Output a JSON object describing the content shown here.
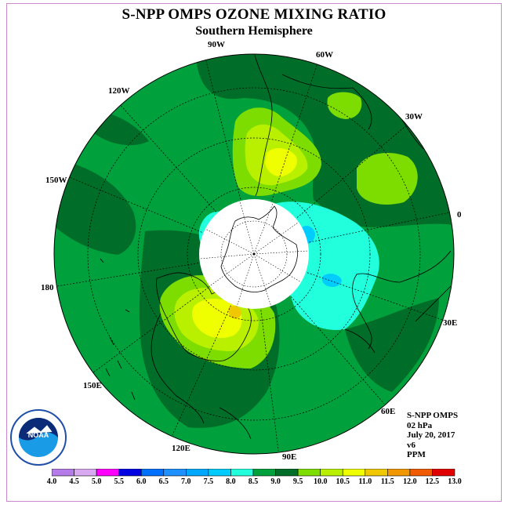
{
  "title": "S-NPP OMPS OZONE MIXING RATIO",
  "subtitle": "Southern Hemisphere",
  "longitude_labels": {
    "lon_90W": "90W",
    "lon_60W": "60W",
    "lon_30W": "30W",
    "lon_0": "0",
    "lon_30E": "30E",
    "lon_60E": "60E",
    "lon_90E": "90E",
    "lon_120E": "120E",
    "lon_150E": "150E",
    "lon_180": "180",
    "lon_150W": "150W",
    "lon_120W": "120W"
  },
  "info": {
    "instrument": "S-NPP OMPS",
    "level": "02 hPa",
    "date": "July 20, 2017",
    "version": "v6",
    "units": "PPM"
  },
  "logo_text": "NOAA",
  "colorbar": {
    "ticks": [
      "4.0",
      "4.5",
      "5.0",
      "5.5",
      "6.0",
      "6.5",
      "7.0",
      "7.5",
      "8.0",
      "8.5",
      "9.0",
      "9.5",
      "10.0",
      "10.5",
      "11.0",
      "11.5",
      "12.0",
      "12.5",
      "13.0"
    ],
    "colors": [
      "#b57be8",
      "#d8a8f0",
      "#ff00ff",
      "#0000e0",
      "#0070ff",
      "#1e90ff",
      "#00a8ff",
      "#00ccff",
      "#22ffdd",
      "#00a03c",
      "#006e28",
      "#7ddc00",
      "#b8f000",
      "#f0ff00",
      "#f0c800",
      "#f09600",
      "#f05a00",
      "#e00000",
      "#8b5a3c"
    ]
  },
  "map": {
    "type": "polar-stereographic",
    "hemisphere": "south",
    "background_level_ppm": "8.5-9.0",
    "missing_data_region": "polar night (white disc)",
    "features": [
      {
        "name": "high near South America / Drake Passage",
        "max_ppm": "10.5-11.0"
      },
      {
        "name": "high south of Australia",
        "max_ppm": "10.5-11.0"
      },
      {
        "name": "secondary high, South Atlantic",
        "max_ppm": "9.5-10.0"
      },
      {
        "name": "low near Indian Ocean sector edge",
        "min_ppm": "7.5-8.0"
      }
    ]
  }
}
